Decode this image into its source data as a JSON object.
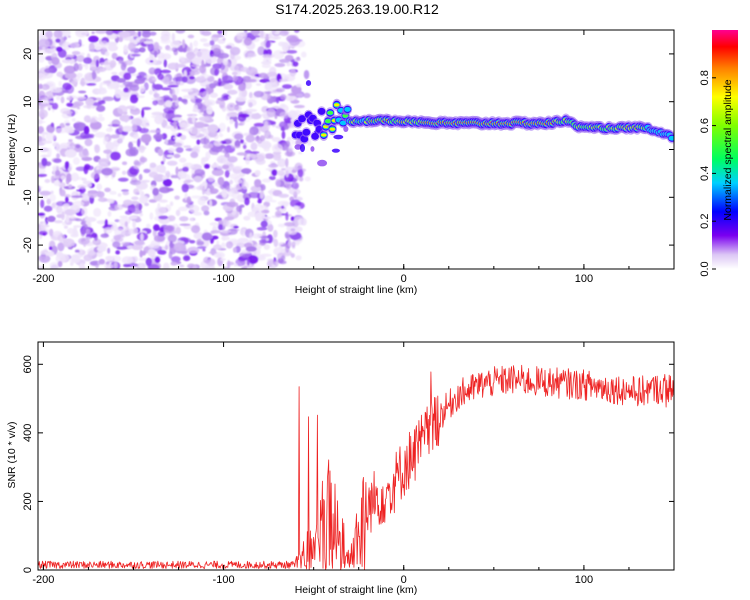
{
  "title": "S174.2025.263.19.00.R12",
  "chart_data": [
    {
      "type": "heatmap",
      "name": "spectrogram",
      "xlabel": "Height of straight line (km)",
      "ylabel": "Frequency (Hz)",
      "xlim": [
        -203,
        150
      ],
      "ylim": [
        -25,
        25
      ],
      "xticks": [
        -200,
        -100,
        0,
        100
      ],
      "xtick_labels": [
        "-200",
        "-100",
        "0",
        "100"
      ],
      "yticks": [
        -20,
        -10,
        0,
        10,
        20
      ],
      "ytick_labels": [
        "-20",
        "-10",
        "0",
        "10",
        "20"
      ],
      "noise_region_x": [
        -203,
        -57
      ],
      "signal_track": [
        {
          "x": -60,
          "f": 4.5
        },
        {
          "x": -50,
          "f": 5.0
        },
        {
          "x": -40,
          "f": 6.5
        },
        {
          "x": -30,
          "f": 6.0
        },
        {
          "x": -20,
          "f": 6.0
        },
        {
          "x": 0,
          "f": 6.0
        },
        {
          "x": 20,
          "f": 5.5
        },
        {
          "x": 80,
          "f": 5.5
        },
        {
          "x": 90,
          "f": 6.0
        },
        {
          "x": 100,
          "f": 4.5
        },
        {
          "x": 120,
          "f": 4.5
        },
        {
          "x": 135,
          "f": 4.5
        },
        {
          "x": 150,
          "f": 2.5
        }
      ],
      "colorbar": {
        "label": "Normalized spectral amplitude",
        "range": [
          0,
          1
        ],
        "ticks": [
          0.0,
          0.2,
          0.4,
          0.6,
          0.8
        ],
        "tick_labels": [
          "0.0",
          "0.2",
          "0.4",
          "0.6",
          "0.8"
        ]
      }
    },
    {
      "type": "line",
      "name": "snr",
      "xlabel": "Height of straight line (km)",
      "ylabel": "SNR (10 * v/v)",
      "xlim": [
        -203,
        150
      ],
      "ylim": [
        0,
        665
      ],
      "xticks": [
        -200,
        -100,
        0,
        100
      ],
      "xtick_labels": [
        "-200",
        "-100",
        "0",
        "100"
      ],
      "yticks": [
        0,
        200,
        400,
        600
      ],
      "ytick_labels": [
        "0",
        "200",
        "400",
        "600"
      ],
      "color": "#ee2222",
      "envelope": [
        {
          "x": -203,
          "y": 15
        },
        {
          "x": -60,
          "y": 15
        },
        {
          "x": -52,
          "y": 60
        },
        {
          "x": -42,
          "y": 150
        },
        {
          "x": -35,
          "y": 80
        },
        {
          "x": -30,
          "y": 30
        },
        {
          "x": -24,
          "y": 100
        },
        {
          "x": -18,
          "y": 200
        },
        {
          "x": -8,
          "y": 230
        },
        {
          "x": 0,
          "y": 300
        },
        {
          "x": 10,
          "y": 370
        },
        {
          "x": 20,
          "y": 450
        },
        {
          "x": 30,
          "y": 510
        },
        {
          "x": 45,
          "y": 545
        },
        {
          "x": 60,
          "y": 555
        },
        {
          "x": 100,
          "y": 540
        },
        {
          "x": 130,
          "y": 520
        },
        {
          "x": 150,
          "y": 535
        }
      ]
    }
  ]
}
